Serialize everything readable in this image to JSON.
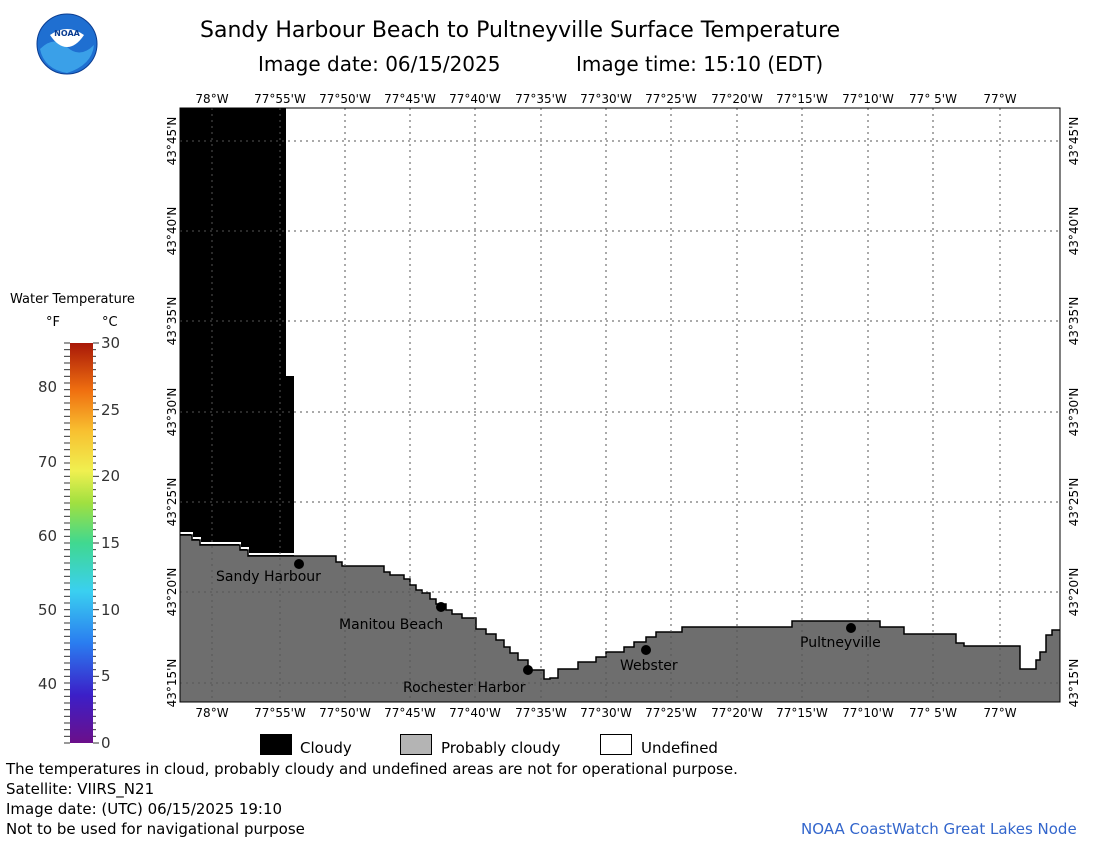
{
  "header": {
    "title": "Sandy Harbour Beach to Pultneyville Surface Temperature",
    "image_date": "Image date: 06/15/2025",
    "image_time": "Image time: 15:10 (EDT)",
    "logo_text": "NOAA"
  },
  "legend": {
    "title": "Water Temperature",
    "unit_f": "°F",
    "unit_c": "°C",
    "f_ticks": [
      "80",
      "70",
      "60",
      "50",
      "40"
    ],
    "c_ticks": [
      "30",
      "25",
      "20",
      "15",
      "10",
      "5",
      "0"
    ],
    "c_range": [
      0,
      30
    ]
  },
  "map": {
    "lon_labels": [
      "78°W",
      "77°55'W",
      "77°50'W",
      "77°45'W",
      "77°40'W",
      "77°35'W",
      "77°30'W",
      "77°25'W",
      "77°20'W",
      "77°15'W",
      "77°10'W",
      "77° 5'W",
      "77°W"
    ],
    "lat_labels": [
      "43°45'N",
      "43°40'N",
      "43°35'N",
      "43°30'N",
      "43°25'N",
      "43°20'N",
      "43°15'N"
    ],
    "places": [
      {
        "name": "Sandy Harbour"
      },
      {
        "name": "Manitou Beach"
      },
      {
        "name": "Rochester Harbor"
      },
      {
        "name": "Webster"
      },
      {
        "name": "Pultneyville"
      }
    ],
    "colors": {
      "cloud": "#000000",
      "land": "#6e6e6e",
      "grid": "#555555"
    }
  },
  "key": [
    {
      "label": "Cloudy",
      "color": "#000000"
    },
    {
      "label": "Probably cloudy",
      "color": "#b4b4b4"
    },
    {
      "label": "Undefined",
      "color": "#ffffff"
    }
  ],
  "notes": {
    "disclaimer": "The temperatures in cloud, probably cloudy and undefined areas are not for operational purpose.",
    "satellite": "Satellite: VIIRS_N21",
    "utc_date": "Image date: (UTC) 06/15/2025  19:10",
    "nav": "Not to be used for navigational purpose",
    "credit": "NOAA CoastWatch Great Lakes Node"
  }
}
